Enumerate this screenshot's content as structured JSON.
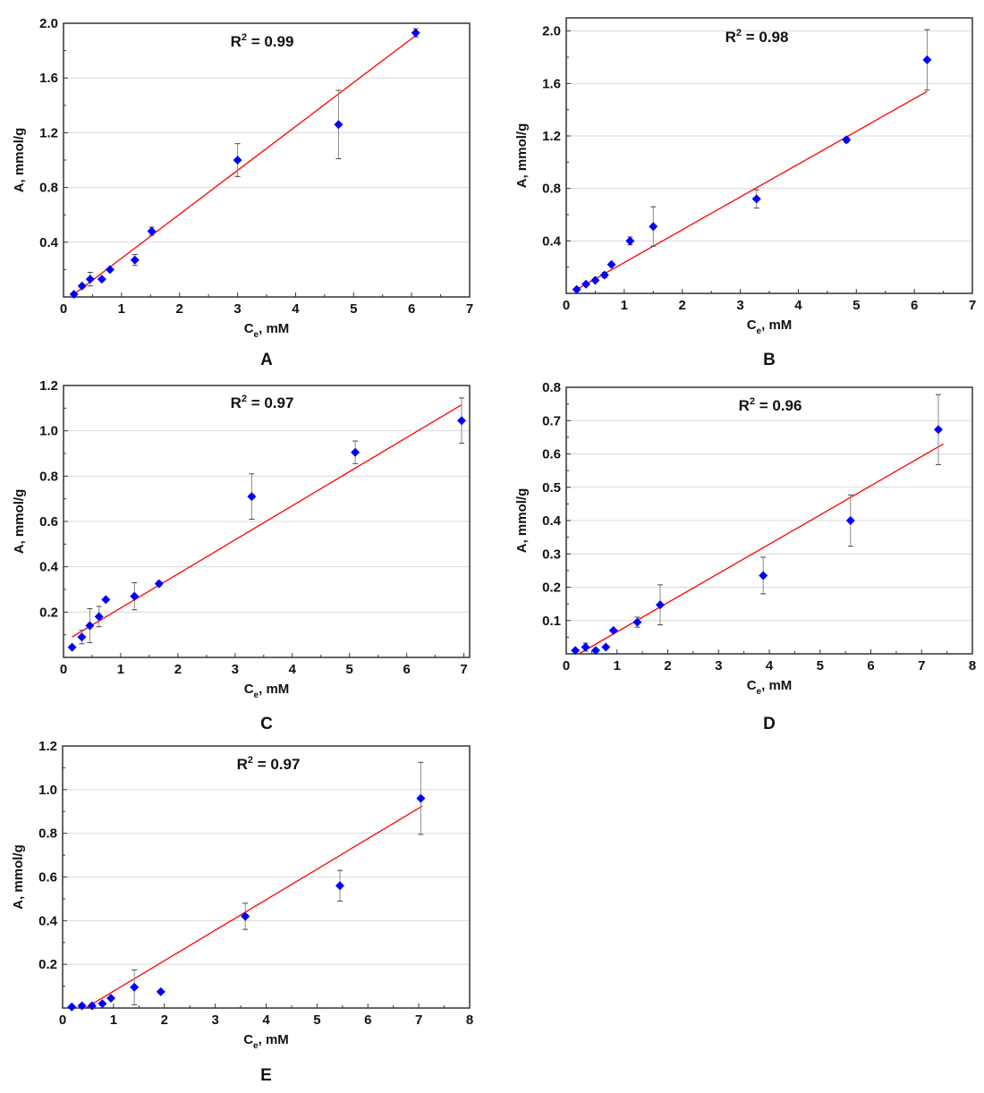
{
  "colors": {
    "marker": "#0000ff",
    "fit_line": "#ff0000",
    "error_bar": "#8a8a8a",
    "grid": "#d9d9d9",
    "axis": "#333333"
  },
  "chart_data": [
    {
      "type": "scatter",
      "panel_label": "A",
      "annotation": {
        "base": "R",
        "sup": "2",
        "text": " = 0.99"
      },
      "xlabel": {
        "base": "C",
        "sub": "e",
        "text": ", mM"
      },
      "ylabel": "A, mmol/g",
      "xlim": [
        0,
        7
      ],
      "ylim": [
        0,
        2.0
      ],
      "xticks": [
        "0",
        "1",
        "2",
        "3",
        "4",
        "5",
        "6",
        "7"
      ],
      "yticks": [
        "0.4",
        "0.8",
        "1.2",
        "1.6",
        "2.0"
      ],
      "grid": true,
      "points": [
        {
          "x": 0.18,
          "y": 0.02,
          "err": 0.01
        },
        {
          "x": 0.32,
          "y": 0.08,
          "err": 0.01
        },
        {
          "x": 0.46,
          "y": 0.13,
          "err": 0.05
        },
        {
          "x": 0.66,
          "y": 0.13,
          "err": 0.01
        },
        {
          "x": 0.8,
          "y": 0.2,
          "err": 0.01
        },
        {
          "x": 1.23,
          "y": 0.27,
          "err": 0.04
        },
        {
          "x": 1.52,
          "y": 0.48,
          "err": 0.03
        },
        {
          "x": 3.0,
          "y": 1.0,
          "err": 0.12
        },
        {
          "x": 4.74,
          "y": 1.26,
          "err": 0.25
        },
        {
          "x": 6.07,
          "y": 1.93,
          "err": 0.03
        }
      ],
      "fit": [
        [
          0.18,
          0.02
        ],
        [
          6.07,
          1.91
        ]
      ]
    },
    {
      "type": "scatter",
      "panel_label": "B",
      "annotation": {
        "base": "R",
        "sup": "2",
        "text": " = 0.98"
      },
      "xlabel": {
        "base": "C",
        "sub": "e",
        "text": ", mM"
      },
      "ylabel": "A, mmol/g",
      "xlim": [
        0,
        7
      ],
      "ylim": [
        0,
        2.1
      ],
      "xticks": [
        "0",
        "1",
        "2",
        "3",
        "4",
        "5",
        "6",
        "7"
      ],
      "yticks": [
        "0.4",
        "0.8",
        "1.2",
        "1.6",
        "2.0"
      ],
      "grid": true,
      "points": [
        {
          "x": 0.18,
          "y": 0.03,
          "err": 0.01
        },
        {
          "x": 0.34,
          "y": 0.07,
          "err": 0.01
        },
        {
          "x": 0.5,
          "y": 0.1,
          "err": 0.01
        },
        {
          "x": 0.66,
          "y": 0.14,
          "err": 0.02
        },
        {
          "x": 0.78,
          "y": 0.22,
          "err": 0.01
        },
        {
          "x": 1.1,
          "y": 0.4,
          "err": 0.03
        },
        {
          "x": 1.5,
          "y": 0.51,
          "err": 0.15
        },
        {
          "x": 3.28,
          "y": 0.72,
          "err": 0.07
        },
        {
          "x": 4.83,
          "y": 1.17,
          "err": 0.02
        },
        {
          "x": 6.22,
          "y": 1.78,
          "err": 0.23
        }
      ],
      "fit": [
        [
          0.18,
          0.03
        ],
        [
          6.22,
          1.54
        ]
      ]
    },
    {
      "type": "scatter",
      "panel_label": "C",
      "annotation": {
        "base": "R",
        "sup": "2",
        "text": " = 0.97"
      },
      "xlabel": {
        "base": "C",
        "sub": "e",
        "text": ", mM"
      },
      "ylabel": "A, mmol/g",
      "xlim": [
        0,
        7.1
      ],
      "ylim": [
        0,
        1.2
      ],
      "xticks": [
        "0",
        "1",
        "2",
        "3",
        "4",
        "5",
        "6",
        "7"
      ],
      "yticks": [
        "0.2",
        "0.4",
        "0.6",
        "0.8",
        "1.0",
        "1.2"
      ],
      "grid": true,
      "points": [
        {
          "x": 0.15,
          "y": 0.045,
          "err": 0.005
        },
        {
          "x": 0.32,
          "y": 0.09,
          "err": 0.03
        },
        {
          "x": 0.46,
          "y": 0.14,
          "err": 0.075
        },
        {
          "x": 0.62,
          "y": 0.18,
          "err": 0.045
        },
        {
          "x": 0.74,
          "y": 0.255,
          "err": 0.005
        },
        {
          "x": 1.24,
          "y": 0.27,
          "err": 0.06
        },
        {
          "x": 1.67,
          "y": 0.325,
          "err": 0.01
        },
        {
          "x": 3.29,
          "y": 0.71,
          "err": 0.1
        },
        {
          "x": 5.1,
          "y": 0.905,
          "err": 0.05
        },
        {
          "x": 6.96,
          "y": 1.045,
          "err": 0.1
        }
      ],
      "fit": [
        [
          0.15,
          0.09
        ],
        [
          6.96,
          1.115
        ]
      ]
    },
    {
      "type": "scatter",
      "panel_label": "D",
      "annotation": {
        "base": "R",
        "sup": "2",
        "text": " = 0.96"
      },
      "xlabel": {
        "base": "C",
        "sub": "e",
        "text": ", mM"
      },
      "ylabel": "A, mmol/g",
      "xlim": [
        0,
        8
      ],
      "ylim": [
        0,
        0.8
      ],
      "xticks": [
        "0",
        "1",
        "2",
        "3",
        "4",
        "5",
        "6",
        "7",
        "8"
      ],
      "yticks": [
        "0.1",
        "0.2",
        "0.3",
        "0.4",
        "0.5",
        "0.6",
        "0.7",
        "0.8"
      ],
      "grid": true,
      "points": [
        {
          "x": 0.18,
          "y": 0.01,
          "err": 0.003
        },
        {
          "x": 0.38,
          "y": 0.02,
          "err": 0.012
        },
        {
          "x": 0.58,
          "y": 0.01,
          "err": 0.003
        },
        {
          "x": 0.78,
          "y": 0.02,
          "err": 0.003
        },
        {
          "x": 0.93,
          "y": 0.07,
          "err": 0.005
        },
        {
          "x": 1.4,
          "y": 0.095,
          "err": 0.015
        },
        {
          "x": 1.85,
          "y": 0.147,
          "err": 0.06
        },
        {
          "x": 3.88,
          "y": 0.235,
          "err": 0.055
        },
        {
          "x": 5.6,
          "y": 0.4,
          "err": 0.077
        },
        {
          "x": 7.33,
          "y": 0.673,
          "err": 0.105
        }
      ],
      "fit": [
        [
          0.25,
          0.0
        ],
        [
          7.43,
          0.63
        ]
      ]
    },
    {
      "type": "scatter",
      "panel_label": "E",
      "annotation": {
        "base": "R",
        "sup": "2",
        "text": " = 0.97"
      },
      "xlabel": {
        "base": "C",
        "sub": "e",
        "text": ", mM"
      },
      "ylabel": "A, mmol/g",
      "xlim": [
        0,
        8
      ],
      "ylim": [
        0,
        1.2
      ],
      "xticks": [
        "0",
        "1",
        "2",
        "3",
        "4",
        "5",
        "6",
        "7",
        "8"
      ],
      "yticks": [
        "0.2",
        "0.4",
        "0.6",
        "0.8",
        "1.0",
        "1.2"
      ],
      "grid": true,
      "points": [
        {
          "x": 0.18,
          "y": 0.005,
          "err": 0.003
        },
        {
          "x": 0.38,
          "y": 0.01,
          "err": 0.003
        },
        {
          "x": 0.58,
          "y": 0.01,
          "err": 0.01
        },
        {
          "x": 0.78,
          "y": 0.02,
          "err": 0.003
        },
        {
          "x": 0.95,
          "y": 0.045,
          "err": 0.005
        },
        {
          "x": 1.41,
          "y": 0.095,
          "err": 0.08
        },
        {
          "x": 1.93,
          "y": 0.075,
          "err": 0.005
        },
        {
          "x": 3.59,
          "y": 0.42,
          "err": 0.06
        },
        {
          "x": 5.45,
          "y": 0.56,
          "err": 0.07
        },
        {
          "x": 7.04,
          "y": 0.96,
          "err": 0.165
        }
      ],
      "fit": [
        [
          0.45,
          0.0
        ],
        [
          7.07,
          0.925
        ]
      ]
    }
  ]
}
